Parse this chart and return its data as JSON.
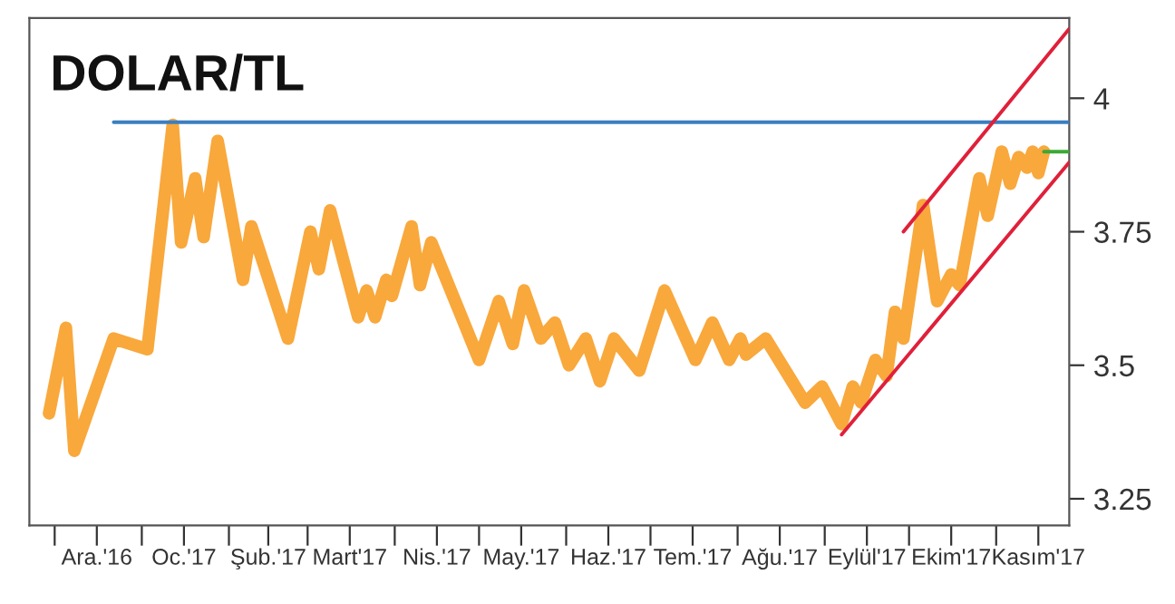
{
  "chart_data": {
    "type": "line",
    "title": "DOLAR/TL",
    "xlim": [
      "2016-11-22",
      "2017-11-27"
    ],
    "ylim": [
      3.2,
      4.15
    ],
    "yticks": [
      3.25,
      3.5,
      3.75,
      4
    ],
    "xticks": [
      {
        "value": "2016-12-01",
        "label": null
      },
      {
        "value": "2016-12-16",
        "label": "Ara.'16"
      },
      {
        "value": "2017-01-01",
        "label": null
      },
      {
        "value": "2017-01-16",
        "label": "Oc.'17"
      },
      {
        "value": "2017-02-01",
        "label": null
      },
      {
        "value": "2017-02-15",
        "label": "Şub.'17"
      },
      {
        "value": "2017-03-01",
        "label": null
      },
      {
        "value": "2017-03-16",
        "label": "Mart'17"
      },
      {
        "value": "2017-04-01",
        "label": null
      },
      {
        "value": "2017-04-16",
        "label": "Nis.'17"
      },
      {
        "value": "2017-05-01",
        "label": null
      },
      {
        "value": "2017-05-16",
        "label": "May.'17"
      },
      {
        "value": "2017-06-01",
        "label": null
      },
      {
        "value": "2017-06-16",
        "label": "Haz.'17"
      },
      {
        "value": "2017-07-01",
        "label": null
      },
      {
        "value": "2017-07-16",
        "label": "Tem.'17"
      },
      {
        "value": "2017-08-01",
        "label": null
      },
      {
        "value": "2017-08-16",
        "label": "Ağu.'17"
      },
      {
        "value": "2017-09-01",
        "label": null
      },
      {
        "value": "2017-09-16",
        "label": "Eylül'17"
      },
      {
        "value": "2017-10-01",
        "label": null
      },
      {
        "value": "2017-10-16",
        "label": "Ekim'17"
      },
      {
        "value": "2017-11-01",
        "label": null
      },
      {
        "value": "2017-11-16",
        "label": "Kasım'17"
      }
    ],
    "grid": false,
    "legend": false,
    "marker": "none",
    "line_style": "solid",
    "series": [
      {
        "color": "#f9a83c",
        "x": [
          "2016-11-29",
          "2016-12-05",
          "2016-12-08",
          "2016-12-22",
          "2017-01-03",
          "2017-01-12",
          "2017-01-15",
          "2017-01-20",
          "2017-01-23",
          "2017-01-28",
          "2017-02-06",
          "2017-02-09",
          "2017-02-22",
          "2017-03-02",
          "2017-03-05",
          "2017-03-09",
          "2017-03-19",
          "2017-03-22",
          "2017-03-25",
          "2017-03-29",
          "2017-03-31",
          "2017-04-07",
          "2017-04-10",
          "2017-04-14",
          "2017-05-01",
          "2017-05-08",
          "2017-05-13",
          "2017-05-17",
          "2017-05-23",
          "2017-05-28",
          "2017-06-02",
          "2017-06-08",
          "2017-06-13",
          "2017-06-18",
          "2017-06-27",
          "2017-07-06",
          "2017-07-17",
          "2017-07-23",
          "2017-07-29",
          "2017-08-02",
          "2017-08-04",
          "2017-08-11",
          "2017-08-25",
          "2017-08-31",
          "2017-09-07",
          "2017-09-11",
          "2017-09-14",
          "2017-09-19",
          "2017-09-23",
          "2017-09-26",
          "2017-09-29",
          "2017-10-06",
          "2017-10-11",
          "2017-10-16",
          "2017-10-19",
          "2017-10-26",
          "2017-10-29",
          "2017-11-03",
          "2017-11-06",
          "2017-11-09",
          "2017-11-12",
          "2017-11-14",
          "2017-11-16",
          "2017-11-18"
        ],
        "values": [
          3.41,
          3.57,
          3.34,
          3.55,
          3.53,
          3.95,
          3.73,
          3.85,
          3.74,
          3.92,
          3.66,
          3.76,
          3.55,
          3.75,
          3.68,
          3.79,
          3.59,
          3.64,
          3.59,
          3.66,
          3.63,
          3.76,
          3.65,
          3.73,
          3.51,
          3.62,
          3.54,
          3.64,
          3.55,
          3.58,
          3.5,
          3.55,
          3.47,
          3.55,
          3.49,
          3.64,
          3.51,
          3.58,
          3.51,
          3.55,
          3.52,
          3.55,
          3.43,
          3.46,
          3.39,
          3.46,
          3.43,
          3.51,
          3.48,
          3.6,
          3.55,
          3.8,
          3.62,
          3.67,
          3.65,
          3.85,
          3.78,
          3.9,
          3.84,
          3.89,
          3.87,
          3.9,
          3.86,
          3.9
        ]
      },
      {
        "color": "#3a7fc1",
        "x": [
          "2016-12-22",
          "2017-11-27"
        ],
        "values": [
          3.955,
          3.955
        ]
      },
      {
        "color": "#e0203a",
        "x": [
          "2017-09-29",
          "2017-11-27"
        ],
        "values": [
          3.75,
          4.13
        ]
      },
      {
        "color": "#e0203a",
        "x": [
          "2017-09-07",
          "2017-11-27"
        ],
        "values": [
          3.37,
          3.88
        ]
      },
      {
        "color": "#3aaa35",
        "x": [
          "2017-11-18",
          "2017-11-27"
        ],
        "values": [
          3.9,
          3.9
        ]
      }
    ]
  }
}
